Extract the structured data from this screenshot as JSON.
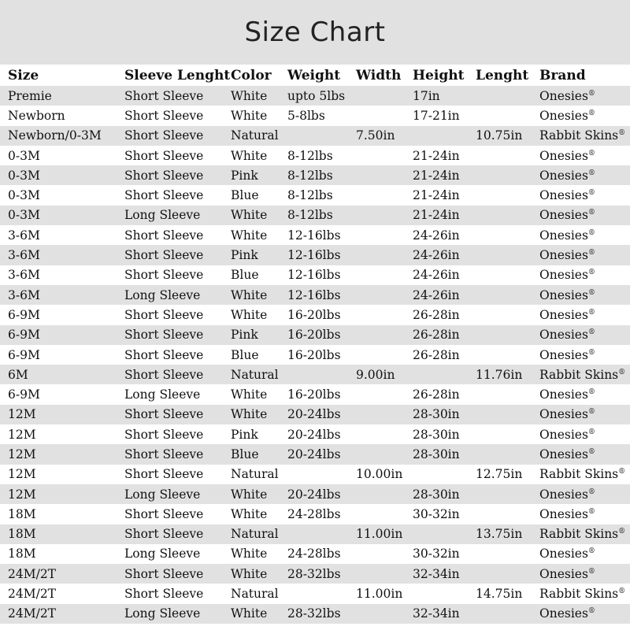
{
  "title": "Size Chart",
  "columns": [
    "Size",
    "Sleeve Lenght",
    "Color",
    "Weight",
    "Width",
    "Height",
    "Lenght",
    "Brand"
  ],
  "rows": [
    [
      "Premie",
      "Short Sleeve",
      "White",
      "upto 5lbs",
      "",
      "17in",
      "",
      "Onesies"
    ],
    [
      "Newborn",
      "Short Sleeve",
      "White",
      "5-8lbs",
      "",
      "17-21in",
      "",
      "Onesies"
    ],
    [
      "Newborn/0-3M",
      "Short Sleeve",
      "Natural",
      "",
      "7.50in",
      "",
      "10.75in",
      "Rabbit Skins"
    ],
    [
      "0-3M",
      "Short Sleeve",
      "White",
      "8-12lbs",
      "",
      "21-24in",
      "",
      "Onesies"
    ],
    [
      "0-3M",
      "Short Sleeve",
      "Pink",
      "8-12lbs",
      "",
      "21-24in",
      "",
      "Onesies"
    ],
    [
      "0-3M",
      "Short Sleeve",
      "Blue",
      "8-12lbs",
      "",
      "21-24in",
      "",
      "Onesies"
    ],
    [
      "0-3M",
      "Long Sleeve",
      "White",
      "8-12lbs",
      "",
      "21-24in",
      "",
      "Onesies"
    ],
    [
      "3-6M",
      "Short Sleeve",
      "White",
      "12-16lbs",
      "",
      "24-26in",
      "",
      "Onesies"
    ],
    [
      "3-6M",
      "Short Sleeve",
      "Pink",
      "12-16lbs",
      "",
      "24-26in",
      "",
      "Onesies"
    ],
    [
      "3-6M",
      "Short Sleeve",
      "Blue",
      "12-16lbs",
      "",
      "24-26in",
      "",
      "Onesies"
    ],
    [
      "3-6M",
      "Long Sleeve",
      "White",
      "12-16lbs",
      "",
      "24-26in",
      "",
      "Onesies"
    ],
    [
      "6-9M",
      "Short Sleeve",
      "White",
      "16-20lbs",
      "",
      "26-28in",
      "",
      "Onesies"
    ],
    [
      "6-9M",
      "Short Sleeve",
      "Pink",
      "16-20lbs",
      "",
      "26-28in",
      "",
      "Onesies"
    ],
    [
      "6-9M",
      "Short Sleeve",
      "Blue",
      "16-20lbs",
      "",
      "26-28in",
      "",
      "Onesies"
    ],
    [
      "6M",
      "Short Sleeve",
      "Natural",
      "",
      "9.00in",
      "",
      "11.76in",
      "Rabbit Skins"
    ],
    [
      "6-9M",
      "Long Sleeve",
      "White",
      "16-20lbs",
      "",
      "26-28in",
      "",
      "Onesies"
    ],
    [
      "12M",
      "Short Sleeve",
      "White",
      "20-24lbs",
      "",
      "28-30in",
      "",
      "Onesies"
    ],
    [
      "12M",
      "Short Sleeve",
      "Pink",
      "20-24lbs",
      "",
      "28-30in",
      "",
      "Onesies"
    ],
    [
      "12M",
      "Short Sleeve",
      "Blue",
      "20-24lbs",
      "",
      "28-30in",
      "",
      "Onesies"
    ],
    [
      "12M",
      "Short Sleeve",
      "Natural",
      "",
      "10.00in",
      "",
      "12.75in",
      "Rabbit Skins"
    ],
    [
      "12M",
      "Long Sleeve",
      "White",
      "20-24lbs",
      "",
      "28-30in",
      "",
      "Onesies"
    ],
    [
      "18M",
      "Short Sleeve",
      "White",
      "24-28lbs",
      "",
      "30-32in",
      "",
      "Onesies"
    ],
    [
      "18M",
      "Short Sleeve",
      "Natural",
      "",
      "11.00in",
      "",
      "13.75in",
      "Rabbit Skins"
    ],
    [
      "18M",
      "Long Sleeve",
      "White",
      "24-28lbs",
      "",
      "30-32in",
      "",
      "Onesies"
    ],
    [
      "24M/2T",
      "Short Sleeve",
      "White",
      "28-32lbs",
      "",
      "32-34in",
      "",
      "Onesies"
    ],
    [
      "24M/2T",
      "Short Sleeve",
      "Natural",
      "",
      "11.00in",
      "",
      "14.75in",
      "Rabbit Skins"
    ],
    [
      "24M/2T",
      "Long Sleeve",
      "White",
      "28-32lbs",
      "",
      "32-34in",
      "",
      "Onesies"
    ]
  ],
  "registered_mark": "®",
  "colors": {
    "stripe": "#e1e1e1",
    "background": "#ffffff"
  }
}
